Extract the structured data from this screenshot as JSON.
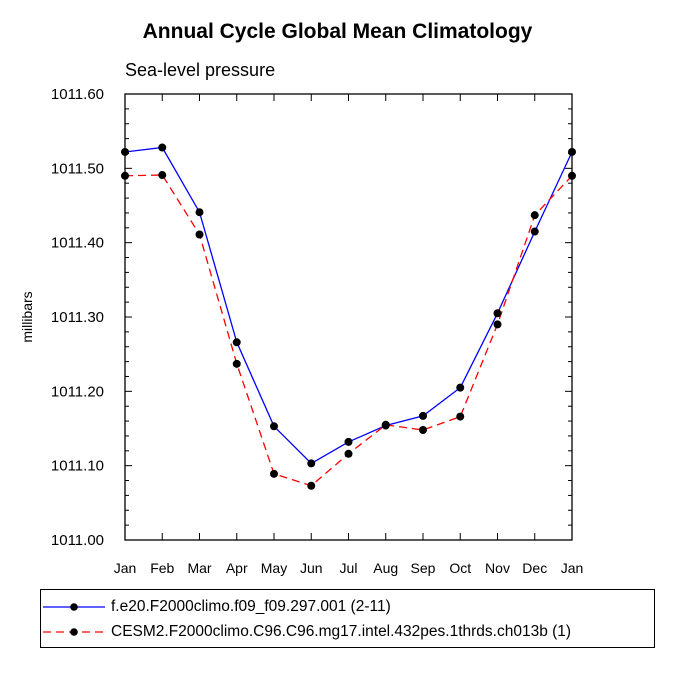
{
  "title": "Annual Cycle Global Mean Climatology",
  "subtitle": "Sea-level pressure",
  "chart_data": {
    "type": "line",
    "title": "Annual Cycle Global Mean Climatology",
    "subtitle": "Sea-level pressure",
    "xlabel": "",
    "ylabel": "millibars",
    "categories": [
      "Jan",
      "Feb",
      "Mar",
      "Apr",
      "May",
      "Jun",
      "Jul",
      "Aug",
      "Sep",
      "Oct",
      "Nov",
      "Dec",
      "Jan"
    ],
    "ylim": [
      1011.0,
      1011.6
    ],
    "yticks": [
      "1011.00",
      "1011.10",
      "1011.20",
      "1011.30",
      "1011.40",
      "1011.50",
      "1011.60"
    ],
    "ytick_values": [
      1011.0,
      1011.1,
      1011.2,
      1011.3,
      1011.4,
      1011.5,
      1011.6
    ],
    "grid": false,
    "legend_position": "bottom",
    "series": [
      {
        "name": "f.e20.F2000climo.f09_f09.297.001 (2-11)",
        "color": "#0000ff",
        "dash": "solid",
        "values": [
          1011.522,
          1011.528,
          1011.441,
          1011.266,
          1011.153,
          1011.103,
          1011.132,
          1011.154,
          1011.167,
          1011.205,
          1011.305,
          1011.415,
          1011.522
        ]
      },
      {
        "name": "CESM2.F2000climo.C96.C96.mg17.intel.432pes.1thrds.ch013b (1)",
        "color": "#ff0000",
        "dash": "dashed",
        "values": [
          1011.49,
          1011.491,
          1011.411,
          1011.237,
          1011.089,
          1011.073,
          1011.116,
          1011.155,
          1011.148,
          1011.166,
          1011.29,
          1011.437,
          1011.49
        ]
      }
    ]
  }
}
